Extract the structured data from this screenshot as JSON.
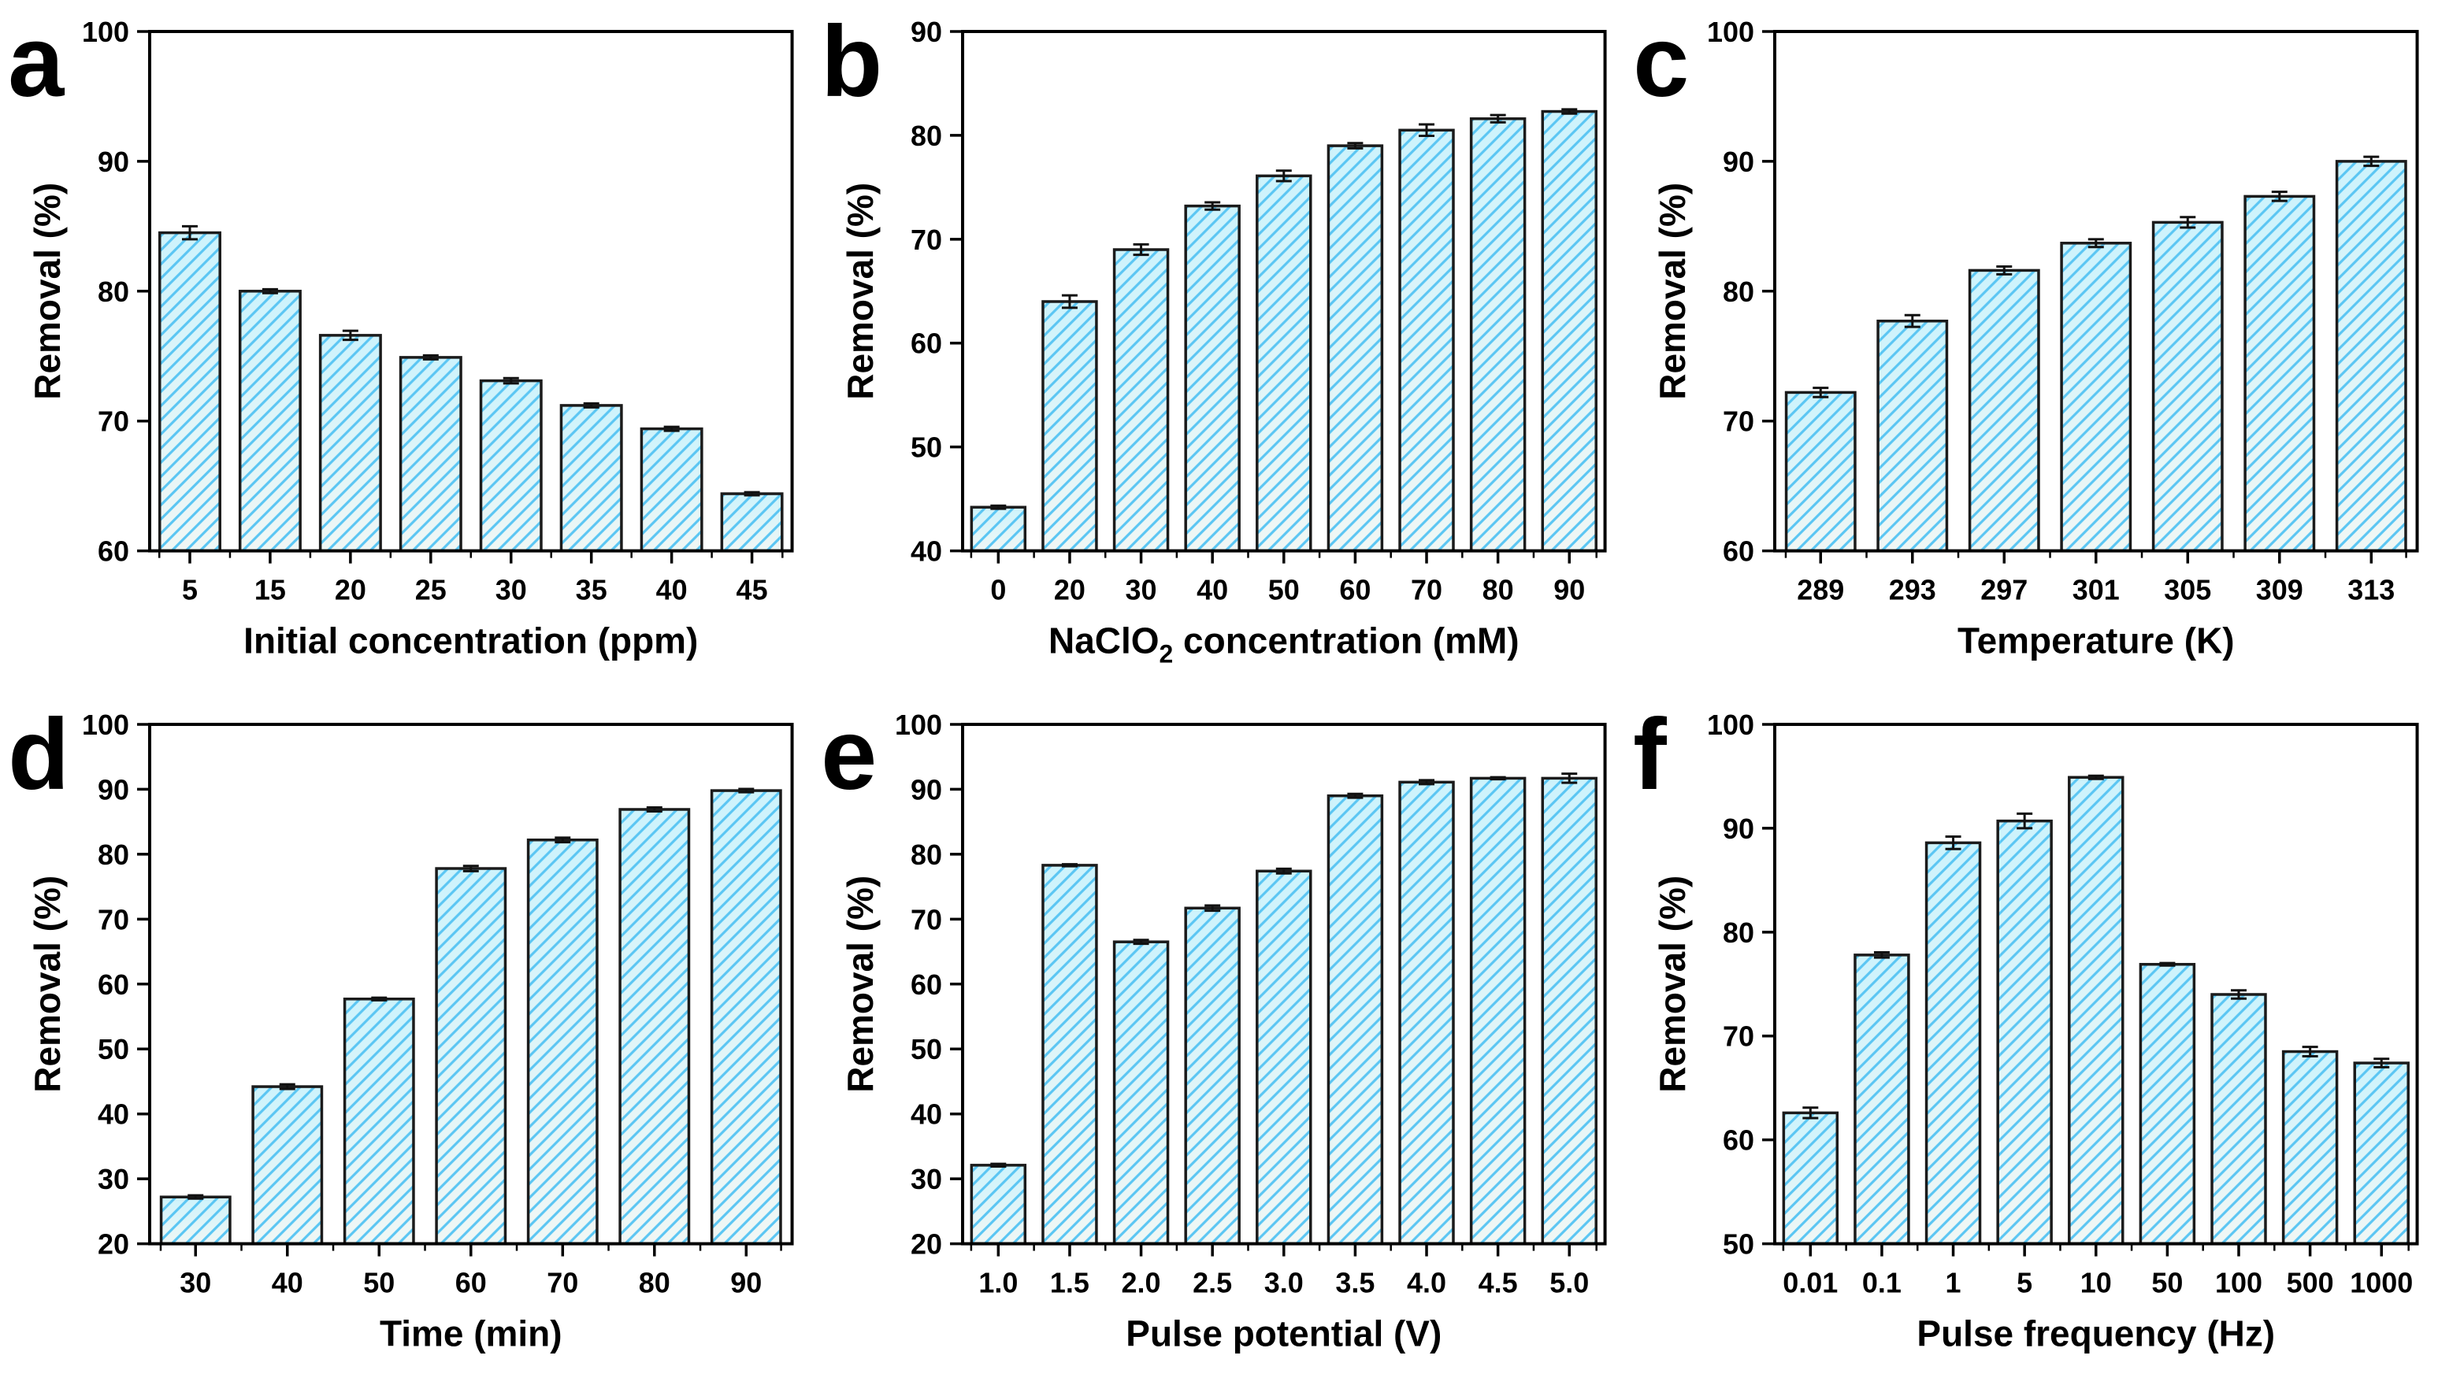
{
  "figure": {
    "background": "#ffffff",
    "ylabel_shared": "Removal (%)"
  },
  "style": {
    "bar_fill_top": "#cdf3fc",
    "bar_fill_bottom": "#f0f7f5",
    "hatch_color": "#5bc6f3",
    "bar_edge_color": "#1b1b1b",
    "axis_color": "#000000",
    "error_bar_color": "#111111",
    "text_color": "#000000"
  },
  "chart_data": [
    {
      "type": "bar",
      "panel_label": "a",
      "title": "",
      "xlabel": "Initial concentration (ppm)",
      "ylabel": "Removal (%)",
      "categories": [
        "5",
        "15",
        "20",
        "25",
        "30",
        "35",
        "40",
        "45"
      ],
      "values": [
        84.5,
        80.0,
        76.6,
        74.9,
        73.1,
        71.2,
        69.4,
        64.4
      ],
      "errors": [
        0.5,
        0.15,
        0.35,
        0.15,
        0.2,
        0.15,
        0.15,
        0.12
      ],
      "ylim": [
        60,
        100
      ],
      "yticks": [
        60,
        70,
        80,
        90,
        100
      ],
      "grid": false,
      "legend": null
    },
    {
      "type": "bar",
      "panel_label": "b",
      "title": "",
      "xlabel": "NaClO2 concentration (mM)",
      "xlabel_parts": [
        {
          "text": "NaClO"
        },
        {
          "text": "2",
          "sub": true
        },
        {
          "text": " concentration (mM)"
        }
      ],
      "ylabel": "Removal (%)",
      "categories": [
        "0",
        "20",
        "30",
        "40",
        "50",
        "60",
        "70",
        "80",
        "90"
      ],
      "values": [
        44.2,
        64.0,
        69.0,
        73.2,
        76.1,
        79.0,
        80.5,
        81.6,
        82.3
      ],
      "errors": [
        0.15,
        0.6,
        0.5,
        0.35,
        0.5,
        0.25,
        0.55,
        0.35,
        0.2
      ],
      "ylim": [
        40,
        90
      ],
      "yticks": [
        40,
        50,
        60,
        70,
        80,
        90
      ],
      "grid": false,
      "legend": null
    },
    {
      "type": "bar",
      "panel_label": "c",
      "title": "",
      "xlabel": "Temperature (K)",
      "ylabel": "Removal (%)",
      "categories": [
        "289",
        "293",
        "297",
        "301",
        "305",
        "309",
        "313"
      ],
      "values": [
        72.2,
        77.7,
        81.6,
        83.7,
        85.3,
        87.3,
        90.0
      ],
      "errors": [
        0.35,
        0.45,
        0.3,
        0.3,
        0.4,
        0.35,
        0.35
      ],
      "ylim": [
        60,
        100
      ],
      "yticks": [
        60,
        70,
        80,
        90,
        100
      ],
      "grid": false,
      "legend": null
    },
    {
      "type": "bar",
      "panel_label": "d",
      "title": "",
      "xlabel": "Time (min)",
      "ylabel": "Removal (%)",
      "categories": [
        "30",
        "40",
        "50",
        "60",
        "70",
        "80",
        "90"
      ],
      "values": [
        27.2,
        44.2,
        57.7,
        77.8,
        82.2,
        86.9,
        89.8
      ],
      "errors": [
        0.25,
        0.35,
        0.2,
        0.4,
        0.35,
        0.3,
        0.25
      ],
      "ylim": [
        20,
        100
      ],
      "yticks": [
        20,
        30,
        40,
        50,
        60,
        70,
        80,
        90,
        100
      ],
      "grid": false,
      "legend": null
    },
    {
      "type": "bar",
      "panel_label": "e",
      "title": "",
      "xlabel": "Pulse potential (V)",
      "ylabel": "Removal (%)",
      "categories": [
        "1.0",
        "1.5",
        "2.0",
        "2.5",
        "3.0",
        "3.5",
        "4.0",
        "4.5",
        "5.0"
      ],
      "values": [
        32.1,
        78.3,
        66.5,
        71.7,
        77.4,
        89.0,
        91.1,
        91.7,
        91.7
      ],
      "errors": [
        0.2,
        0.15,
        0.3,
        0.4,
        0.35,
        0.3,
        0.3,
        0.15,
        0.7
      ],
      "ylim": [
        20,
        100
      ],
      "yticks": [
        20,
        30,
        40,
        50,
        60,
        70,
        80,
        90,
        100
      ],
      "grid": false,
      "legend": null
    },
    {
      "type": "bar",
      "panel_label": "f",
      "title": "",
      "xlabel": "Pulse frequency (Hz)",
      "ylabel": "Removal (%)",
      "categories": [
        "0.01",
        "0.1",
        "1",
        "5",
        "10",
        "50",
        "100",
        "500",
        "1000"
      ],
      "values": [
        62.6,
        77.8,
        88.6,
        90.7,
        94.9,
        76.9,
        74.0,
        68.5,
        67.4
      ],
      "errors": [
        0.5,
        0.25,
        0.6,
        0.7,
        0.15,
        0.12,
        0.4,
        0.45,
        0.4
      ],
      "ylim": [
        50,
        100
      ],
      "yticks": [
        50,
        60,
        70,
        80,
        90,
        100
      ],
      "grid": false,
      "legend": null
    }
  ]
}
